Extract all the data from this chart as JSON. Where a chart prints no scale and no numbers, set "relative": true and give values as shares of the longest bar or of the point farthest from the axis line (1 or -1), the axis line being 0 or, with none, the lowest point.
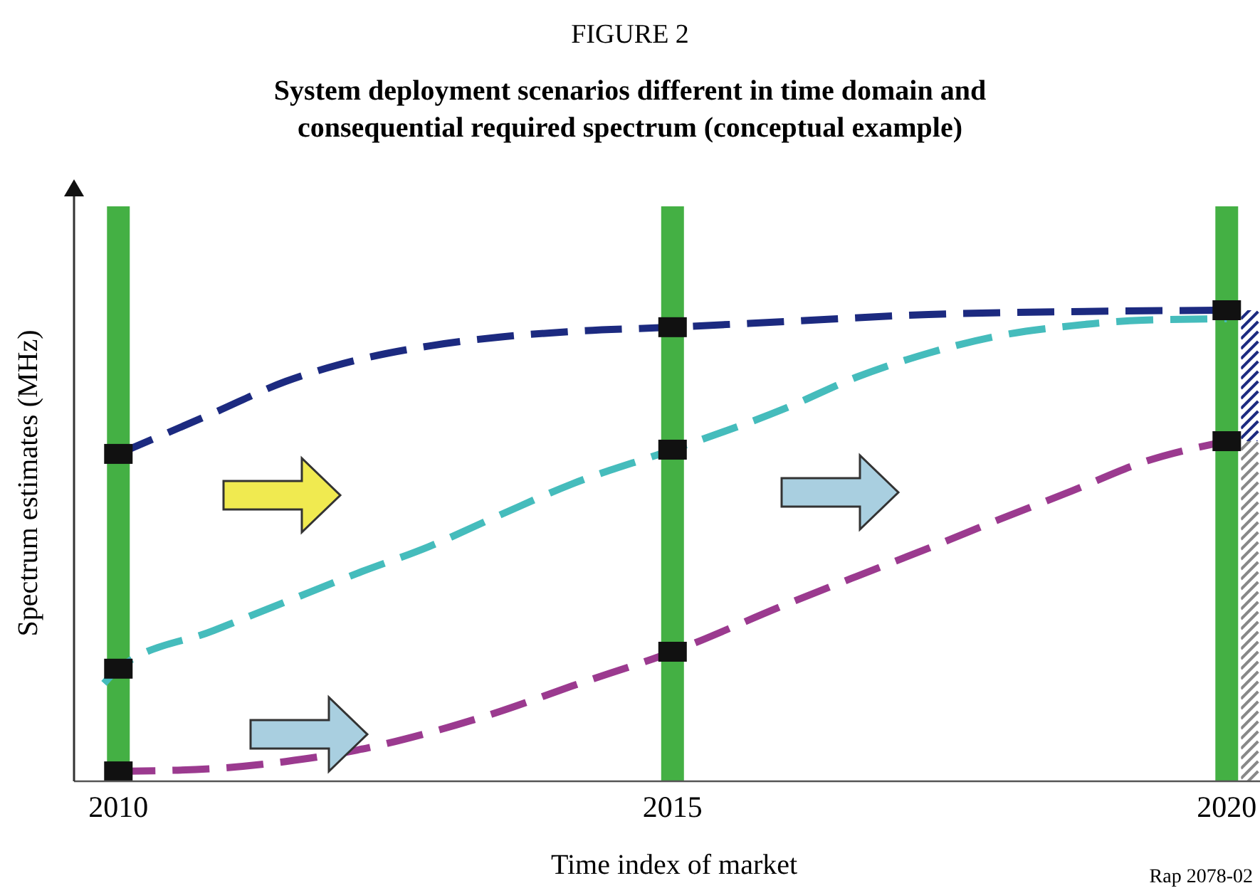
{
  "chart_data": {
    "type": "line",
    "title": "FIGURE 2",
    "subtitle": "System deployment scenarios different in time domain and consequential required spectrum (conceptual example)",
    "xlabel": "Time index of market",
    "ylabel": "Spectrum estimates (MHz)",
    "relative": true,
    "xlim": [
      2009.6,
      2020.3
    ],
    "xticks": [
      2010,
      2015,
      2020
    ],
    "line_style": "dashed",
    "marker": "none",
    "series": [
      {
        "color": "#1c2a80",
        "x": [
          2010,
          2010.86,
          2011.51,
          2012.15,
          2012.8,
          2013.44,
          2014.09,
          2015,
          2016.02,
          2017.31,
          2018.6,
          2020
        ],
        "values": [
          0.695,
          0.782,
          0.849,
          0.894,
          0.924,
          0.943,
          0.955,
          0.964,
          0.976,
          0.991,
          0.997,
          1
        ]
      },
      {
        "color": "#45bcbc",
        "x": [
          2009.87,
          2010,
          2010.86,
          2011.51,
          2012.15,
          2012.8,
          2013.44,
          2014.09,
          2015,
          2016.02,
          2016.66,
          2017.31,
          2017.95,
          2018.6,
          2019.24,
          2020
        ],
        "values": [
          0.208,
          0.239,
          0.32,
          0.381,
          0.441,
          0.498,
          0.565,
          0.631,
          0.704,
          0.792,
          0.858,
          0.909,
          0.946,
          0.967,
          0.979,
          0.982
        ]
      },
      {
        "color": "#9b3a8f",
        "x": [
          2010,
          2010.86,
          2011.51,
          2012.15,
          2012.8,
          2013.44,
          2014.09,
          2015,
          2016.02,
          2016.66,
          2017.31,
          2017.95,
          2018.6,
          2019.24,
          2020
        ],
        "values": [
          0.021,
          0.027,
          0.042,
          0.066,
          0.103,
          0.148,
          0.202,
          0.275,
          0.375,
          0.435,
          0.495,
          0.556,
          0.616,
          0.677,
          0.722
        ]
      },
      {
        "type": "scatter",
        "marker": "square",
        "color": "#111111",
        "x": [
          2010,
          2010,
          2010,
          2015,
          2015,
          2015,
          2020,
          2020
        ],
        "values": [
          0.695,
          0.239,
          0.021,
          0.964,
          0.704,
          0.275,
          1,
          0.722
        ]
      }
    ],
    "ref_lines": [
      {
        "axis": "x",
        "value": 2010,
        "color": "#44b044"
      },
      {
        "axis": "x",
        "value": 2015,
        "color": "#44b044"
      },
      {
        "axis": "x",
        "value": 2020,
        "color": "#44b044"
      }
    ],
    "annotations": [
      "Rap 2078-02"
    ]
  }
}
